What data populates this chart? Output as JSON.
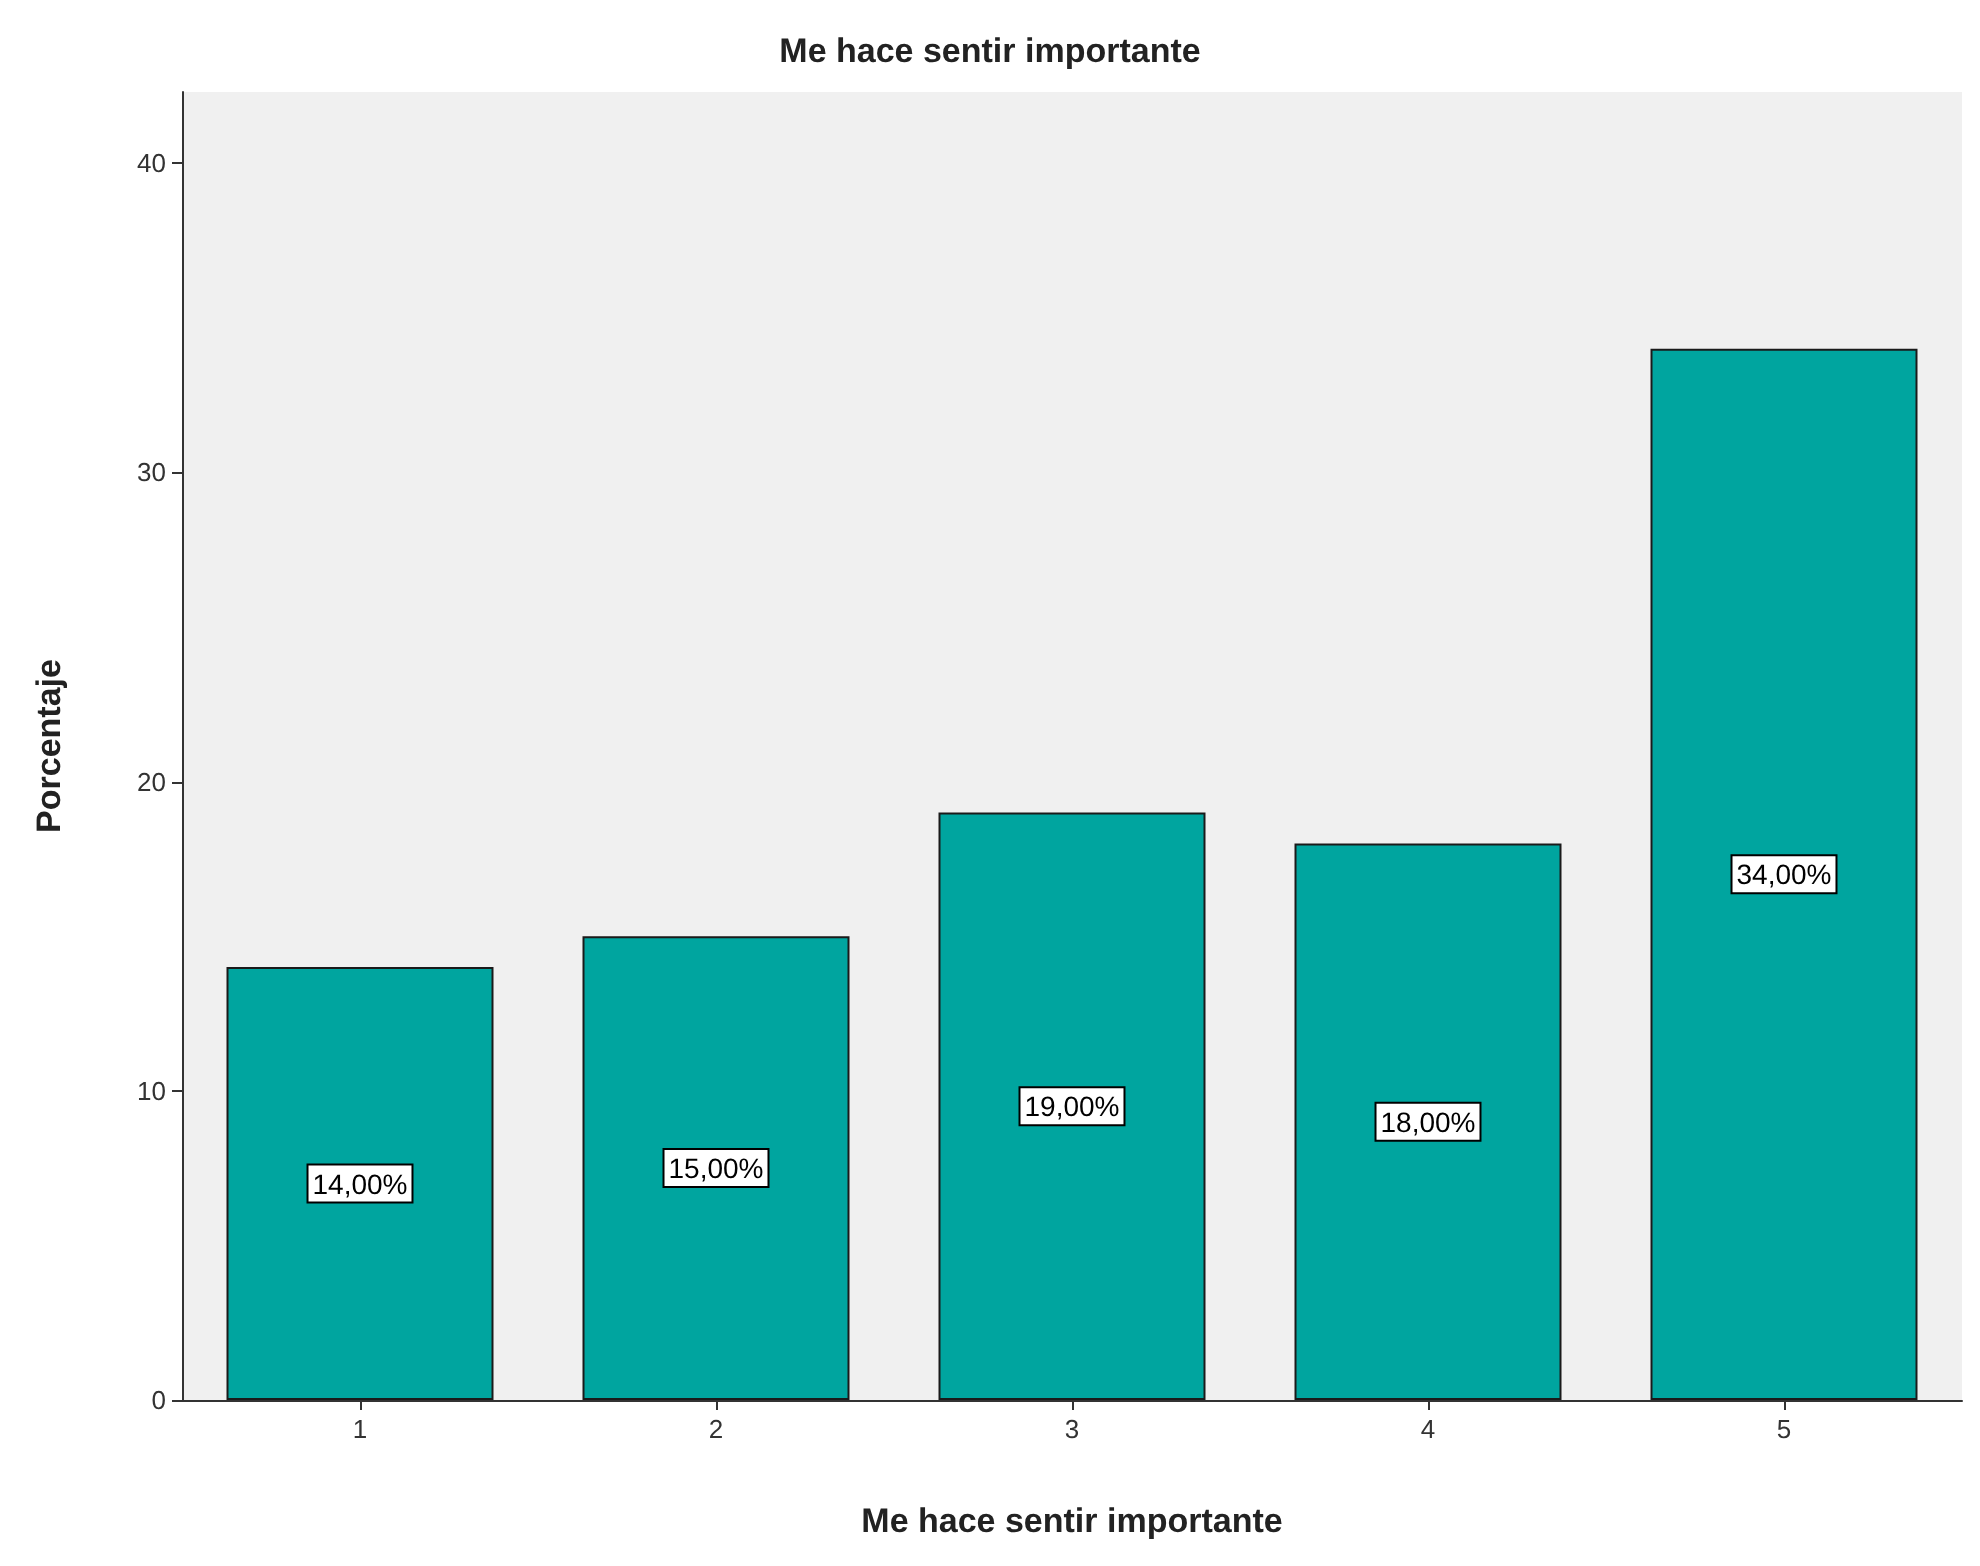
{
  "chart_data": {
    "type": "bar",
    "title": "Me hace sentir importante",
    "xlabel": "Me hace sentir importante",
    "ylabel": "Porcentaje",
    "categories": [
      "1",
      "2",
      "3",
      "4",
      "5"
    ],
    "values": [
      14,
      15,
      19,
      18,
      34
    ],
    "value_labels": [
      "14,00%",
      "15,00%",
      "19,00%",
      "18,00%",
      "34,00%"
    ],
    "color": "#00a59f",
    "ylim": [
      0,
      42.3
    ],
    "yticks": [
      0,
      10,
      20,
      30,
      40
    ],
    "grid": false
  }
}
